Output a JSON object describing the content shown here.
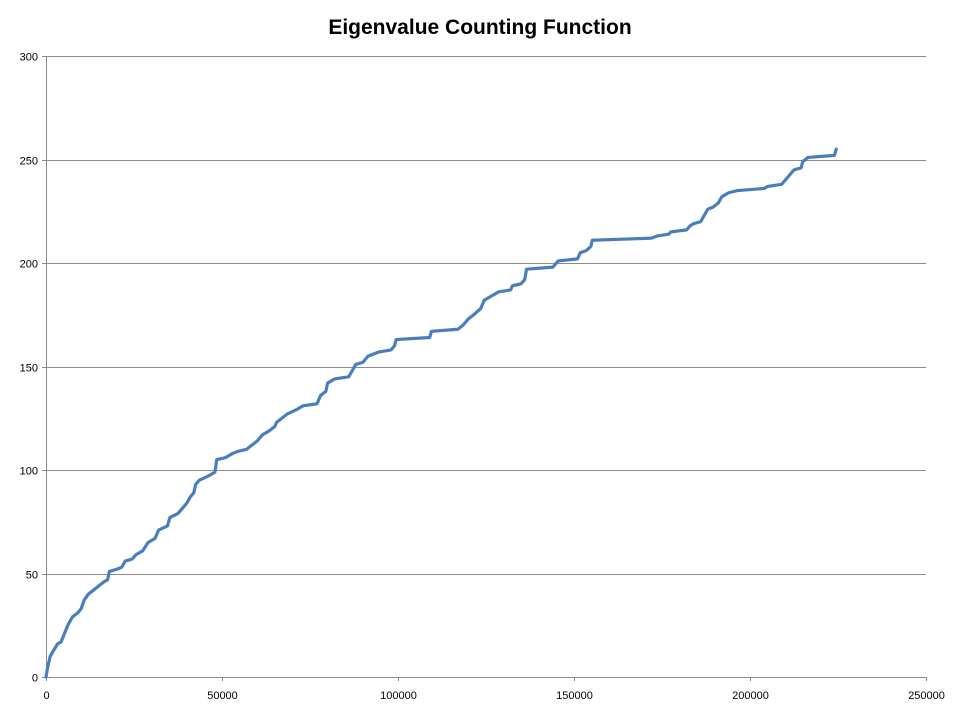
{
  "chart_data": {
    "type": "line",
    "title": "Eigenvalue Counting Function",
    "xlabel": "",
    "ylabel": "",
    "xlim": [
      0,
      250000
    ],
    "ylim": [
      0,
      300
    ],
    "x_ticks": [
      0,
      50000,
      100000,
      150000,
      200000,
      250000
    ],
    "y_ticks": [
      0,
      50,
      100,
      150,
      200,
      250,
      300
    ],
    "grid": {
      "horizontal": true,
      "vertical": false
    },
    "legend": "none",
    "line_color": "#4a7ebb",
    "series": [
      {
        "values": [
          [
            0,
            0
          ],
          [
            500,
            5
          ],
          [
            1200,
            10
          ],
          [
            2200,
            13
          ],
          [
            3300,
            16
          ],
          [
            4300,
            17
          ],
          [
            5000,
            20
          ],
          [
            6200,
            25
          ],
          [
            7500,
            29
          ],
          [
            9000,
            31
          ],
          [
            10000,
            33
          ],
          [
            10800,
            37
          ],
          [
            12000,
            40
          ],
          [
            13500,
            42
          ],
          [
            15000,
            44
          ],
          [
            16500,
            46
          ],
          [
            17500,
            47
          ],
          [
            18000,
            51
          ],
          [
            20000,
            52
          ],
          [
            21500,
            53
          ],
          [
            22500,
            56
          ],
          [
            24500,
            57
          ],
          [
            25500,
            59
          ],
          [
            27500,
            61
          ],
          [
            29000,
            65
          ],
          [
            31000,
            67
          ],
          [
            32000,
            71
          ],
          [
            34500,
            73
          ],
          [
            35200,
            77
          ],
          [
            37500,
            79
          ],
          [
            38500,
            81
          ],
          [
            40000,
            84
          ],
          [
            41000,
            87
          ],
          [
            42000,
            89
          ],
          [
            42500,
            93
          ],
          [
            43500,
            95
          ],
          [
            46000,
            97
          ],
          [
            48000,
            99
          ],
          [
            48500,
            105
          ],
          [
            51000,
            106
          ],
          [
            53000,
            108
          ],
          [
            54500,
            109
          ],
          [
            57000,
            110
          ],
          [
            58500,
            112
          ],
          [
            60000,
            114
          ],
          [
            61500,
            117
          ],
          [
            63500,
            119
          ],
          [
            65000,
            121
          ],
          [
            65500,
            123
          ],
          [
            67000,
            125
          ],
          [
            68500,
            127
          ],
          [
            71000,
            129
          ],
          [
            73000,
            131
          ],
          [
            77000,
            132
          ],
          [
            78000,
            136
          ],
          [
            79500,
            138
          ],
          [
            80000,
            142
          ],
          [
            82000,
            144
          ],
          [
            86000,
            145
          ],
          [
            87000,
            148
          ],
          [
            88000,
            151
          ],
          [
            90000,
            152
          ],
          [
            91500,
            155
          ],
          [
            93000,
            156
          ],
          [
            94500,
            157
          ],
          [
            98000,
            158
          ],
          [
            99000,
            160
          ],
          [
            99500,
            163
          ],
          [
            109000,
            164
          ],
          [
            109500,
            167
          ],
          [
            117000,
            168
          ],
          [
            118500,
            170
          ],
          [
            120000,
            173
          ],
          [
            121500,
            175
          ],
          [
            123500,
            178
          ],
          [
            124500,
            182
          ],
          [
            126500,
            184
          ],
          [
            128500,
            186
          ],
          [
            132000,
            187
          ],
          [
            132500,
            189
          ],
          [
            135000,
            190
          ],
          [
            136000,
            192
          ],
          [
            136500,
            197
          ],
          [
            144000,
            198
          ],
          [
            145500,
            201
          ],
          [
            151000,
            202
          ],
          [
            151800,
            205
          ],
          [
            153500,
            206
          ],
          [
            154800,
            208
          ],
          [
            155200,
            211
          ],
          [
            172000,
            212
          ],
          [
            173500,
            213
          ],
          [
            177000,
            214
          ],
          [
            177500,
            215
          ],
          [
            182000,
            216
          ],
          [
            183000,
            218
          ],
          [
            184000,
            219
          ],
          [
            186000,
            220
          ],
          [
            187000,
            223
          ],
          [
            188000,
            226
          ],
          [
            189500,
            227
          ],
          [
            191000,
            229
          ],
          [
            192000,
            232
          ],
          [
            194000,
            234
          ],
          [
            196500,
            235
          ],
          [
            204000,
            236
          ],
          [
            205000,
            237
          ],
          [
            209000,
            238
          ],
          [
            210500,
            241
          ],
          [
            211500,
            243
          ],
          [
            212500,
            245
          ],
          [
            214500,
            246
          ],
          [
            215000,
            249
          ],
          [
            216500,
            251
          ],
          [
            224000,
            252
          ],
          [
            224500,
            255
          ]
        ]
      }
    ]
  }
}
